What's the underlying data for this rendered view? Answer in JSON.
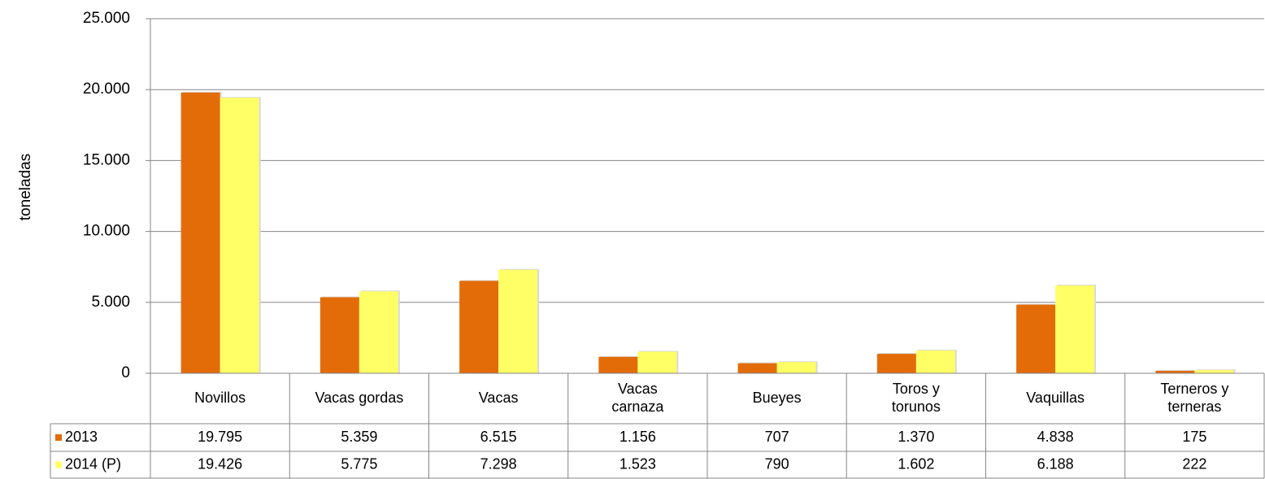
{
  "chart_data": {
    "type": "bar",
    "y_label": "toneladas",
    "categories": [
      "Novillos",
      "Vacas gordas",
      "Vacas",
      "Vacas\ncarnaza",
      "Bueyes",
      "Toros y\ntorunos",
      "Vaquillas",
      "Terneros y\nterneras"
    ],
    "series": [
      {
        "name": "2013",
        "color": "#e36c09",
        "values": [
          19795,
          5359,
          6515,
          1156,
          707,
          1370,
          4838,
          175
        ],
        "value_labels": [
          "19.795",
          "5.359",
          "6.515",
          "1.156",
          "707",
          "1.370",
          "4.838",
          "175"
        ]
      },
      {
        "name": "2014 (P)",
        "color": "#ffff66",
        "values": [
          19426,
          5775,
          7298,
          1523,
          790,
          1602,
          6188,
          222
        ],
        "value_labels": [
          "19.426",
          "5.775",
          "7.298",
          "1.523",
          "790",
          "1.602",
          "6.188",
          "222"
        ]
      }
    ],
    "ylim": [
      0,
      25000
    ],
    "yticks": [
      0,
      {
        "value": 5000,
        "label": "5.000"
      },
      {
        "value": 10000,
        "label": "10.000"
      },
      {
        "value": 15000,
        "label": "15.000"
      },
      {
        "value": 20000,
        "label": "20.000"
      },
      {
        "value": 25000,
        "label": "25.000"
      }
    ],
    "grid": true,
    "legend": "data-table"
  }
}
